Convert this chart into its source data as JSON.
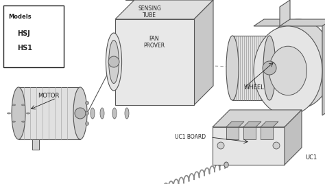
{
  "background_color": "#ffffff",
  "labels": {
    "models_header": "Models",
    "model1": "HSJ",
    "model2": "HS1",
    "sensing_tube": "SENSING\nTUBE",
    "fan_prover": "FAN\nPROVER",
    "motor": "MOTOR",
    "wheel": "WHEEL",
    "uc1_board": "UC1 BOARD",
    "uc1": "UC1"
  },
  "line_color": "#555555",
  "dark_color": "#222222",
  "mid_color": "#888888",
  "fill_light": "#f0f0f0",
  "fill_mid": "#d8d8d8",
  "fill_dark": "#b8b8b8"
}
